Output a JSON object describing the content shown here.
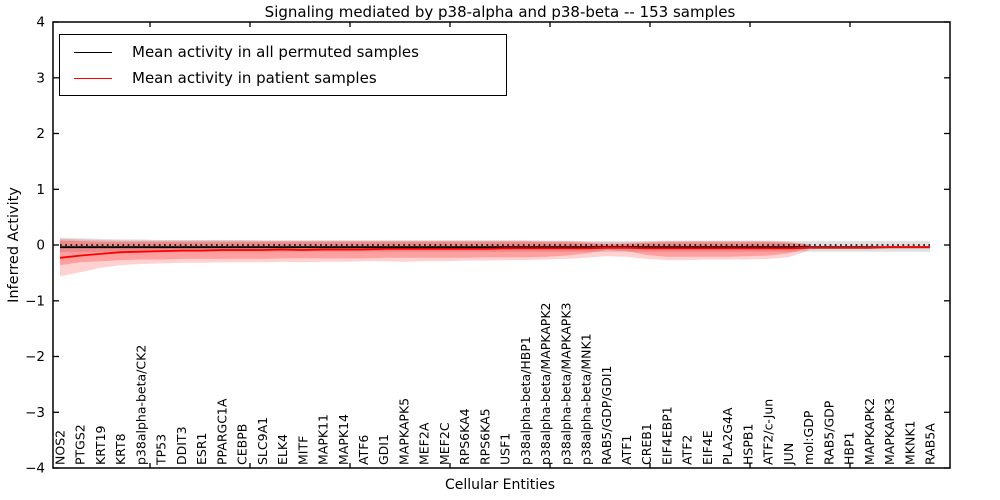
{
  "chart_data": {
    "type": "line",
    "title": "Signaling mediated by p38-alpha and p38-beta -- 153 samples",
    "xlabel": "Cellular Entities",
    "ylabel": "Inferred Activity",
    "ylim": [
      -4,
      4
    ],
    "yticks": [
      -4,
      -3,
      -2,
      -1,
      0,
      1,
      2,
      3,
      4
    ],
    "grid": false,
    "legend_position": "upper left",
    "legend": [
      {
        "label": "Mean activity in all permuted samples",
        "color": "#000000"
      },
      {
        "label": "Mean activity in patient samples",
        "color": "#ff0000"
      }
    ],
    "categories": [
      "NOS2",
      "PTGS2",
      "KRT19",
      "KRT8",
      "p38alpha-beta/CK2",
      "TP53",
      "DDIT3",
      "ESR1",
      "PPARGC1A",
      "CEBPB",
      "SLC9A1",
      "ELK4",
      "MITF",
      "MAPK11",
      "MAPK14",
      "ATF6",
      "GDI1",
      "MAPKAPK5",
      "MEF2A",
      "MEF2C",
      "RPS6KA4",
      "RPS6KA5",
      "USF1",
      "p38alpha-beta/HBP1",
      "p38alpha-beta/MAPKAPK2",
      "p38alpha-beta/MAPKAPK3",
      "p38alpha-beta/MNK1",
      "RAB5/GDP/GDI1",
      "ATF1",
      "CREB1",
      "EIF4EBP1",
      "ATF2",
      "EIF4E",
      "PLA2G4A",
      "HSPB1",
      "ATF2/c-Jun",
      "JUN",
      "mol:GDP",
      "RAB5/GDP",
      "HBP1",
      "MAPKAPK2",
      "MAPKAPK3",
      "MKNK1",
      "RAB5A"
    ],
    "series": [
      {
        "name": "Mean activity in all permuted samples",
        "color": "#000000",
        "style": "solid",
        "constant_value": -0.04
      },
      {
        "name": "Zero reference",
        "color": "#000000",
        "style": "dotted",
        "constant_value": 0.0
      },
      {
        "name": "Mean activity in patient samples",
        "color": "#ff0000",
        "style": "solid",
        "values": [
          -0.23,
          -0.19,
          -0.16,
          -0.13,
          -0.12,
          -0.11,
          -0.1,
          -0.1,
          -0.09,
          -0.09,
          -0.09,
          -0.08,
          -0.09,
          -0.08,
          -0.08,
          -0.08,
          -0.07,
          -0.07,
          -0.07,
          -0.07,
          -0.07,
          -0.07,
          -0.06,
          -0.06,
          -0.06,
          -0.06,
          -0.06,
          -0.05,
          -0.05,
          -0.06,
          -0.06,
          -0.06,
          -0.06,
          -0.06,
          -0.06,
          -0.06,
          -0.06,
          -0.05,
          -0.05,
          -0.05,
          -0.05,
          -0.04,
          -0.04,
          -0.04
        ]
      }
    ],
    "bands": [
      {
        "name": "permuted-samples-range",
        "color": "#909090",
        "opacity": 0.28,
        "start_index": 0,
        "hi": [
          0.13,
          0.12,
          0.11,
          0.1,
          0.1,
          0.09,
          0.09,
          0.09,
          0.09,
          0.09,
          0.08,
          0.08,
          0.08,
          0.08,
          0.08,
          0.08,
          0.08,
          0.08,
          0.08,
          0.08,
          0.08,
          0.08,
          0.08,
          0.08,
          0.08,
          0.08,
          0.07,
          0.07,
          0.07,
          0.07,
          0.08,
          0.08,
          0.08,
          0.08,
          0.08,
          0.08,
          0.07,
          0.07,
          0.07,
          0.07,
          0.07,
          0.07,
          0.07,
          0.07
        ],
        "lo": [
          -0.13,
          -0.13,
          -0.12,
          -0.12,
          -0.12,
          -0.12,
          -0.12,
          -0.12,
          -0.12,
          -0.12,
          -0.12,
          -0.12,
          -0.12,
          -0.12,
          -0.12,
          -0.12,
          -0.12,
          -0.12,
          -0.12,
          -0.12,
          -0.12,
          -0.12,
          -0.12,
          -0.12,
          -0.12,
          -0.12,
          -0.12,
          -0.12,
          -0.12,
          -0.12,
          -0.12,
          -0.12,
          -0.12,
          -0.12,
          -0.12,
          -0.12,
          -0.12,
          -0.12,
          -0.12,
          -0.12,
          -0.12,
          -0.12,
          -0.12,
          -0.12
        ]
      },
      {
        "name": "patient-samples-outer-band",
        "color": "#ff0000",
        "opacity": 0.18,
        "start_index": 0,
        "hi": [
          0.11,
          0.1,
          0.09,
          0.08,
          0.08,
          0.08,
          0.08,
          0.08,
          0.08,
          0.08,
          0.08,
          0.08,
          0.08,
          0.08,
          0.08,
          0.08,
          0.08,
          0.08,
          0.08,
          0.08,
          0.08,
          0.08,
          0.08,
          0.08,
          0.07,
          0.07,
          0.06,
          0.05,
          0.05,
          0.06,
          0.07,
          0.07,
          0.07,
          0.07,
          0.07,
          0.07,
          0.06,
          0.02
        ],
        "lo": [
          -0.56,
          -0.49,
          -0.41,
          -0.36,
          -0.34,
          -0.33,
          -0.32,
          -0.32,
          -0.31,
          -0.31,
          -0.31,
          -0.3,
          -0.31,
          -0.3,
          -0.3,
          -0.29,
          -0.29,
          -0.3,
          -0.29,
          -0.29,
          -0.28,
          -0.28,
          -0.27,
          -0.27,
          -0.26,
          -0.25,
          -0.23,
          -0.2,
          -0.21,
          -0.25,
          -0.27,
          -0.27,
          -0.26,
          -0.26,
          -0.26,
          -0.25,
          -0.22,
          -0.1
        ]
      },
      {
        "name": "patient-samples-inner-band",
        "color": "#ff0000",
        "opacity": 0.24,
        "start_index": 0,
        "hi": [
          0.08,
          0.07,
          0.06,
          0.06,
          0.06,
          0.06,
          0.06,
          0.06,
          0.06,
          0.06,
          0.06,
          0.06,
          0.06,
          0.06,
          0.06,
          0.06,
          0.06,
          0.06,
          0.06,
          0.06,
          0.06,
          0.06,
          0.06,
          0.06,
          0.05,
          0.05,
          0.04,
          0.01,
          0.02,
          0.04,
          0.05,
          0.05,
          0.05,
          0.05,
          0.05,
          0.05,
          0.04,
          0.0
        ],
        "lo": [
          -0.36,
          -0.31,
          -0.29,
          -0.27,
          -0.26,
          -0.26,
          -0.25,
          -0.25,
          -0.25,
          -0.25,
          -0.25,
          -0.24,
          -0.24,
          -0.24,
          -0.24,
          -0.24,
          -0.23,
          -0.23,
          -0.23,
          -0.23,
          -0.23,
          -0.22,
          -0.22,
          -0.22,
          -0.21,
          -0.19,
          -0.15,
          -0.09,
          -0.11,
          -0.18,
          -0.21,
          -0.21,
          -0.21,
          -0.21,
          -0.2,
          -0.19,
          -0.15,
          -0.06
        ]
      }
    ]
  }
}
